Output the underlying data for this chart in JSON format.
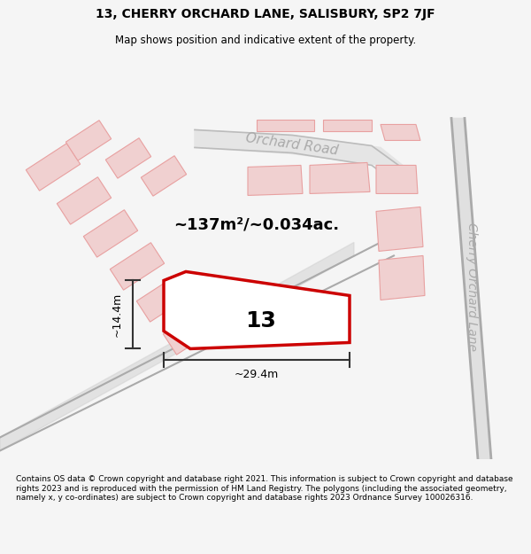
{
  "title_line1": "13, CHERRY ORCHARD LANE, SALISBURY, SP2 7JF",
  "title_line2": "Map shows position and indicative extent of the property.",
  "area_label": "~137m²/~0.034ac.",
  "property_number": "13",
  "dim_height": "~14.4m",
  "dim_width": "~29.4m",
  "road_label1": "Orchard Road",
  "road_label2": "Cherry Orchard Lane",
  "footer_text": "Contains OS data © Crown copyright and database right 2021. This information is subject to Crown copyright and database rights 2023 and is reproduced with the permission of HM Land Registry. The polygons (including the associated geometry, namely x, y co-ordinates) are subject to Crown copyright and database rights 2023 Ordnance Survey 100026316.",
  "bg_color": "#f5f5f5",
  "map_bg": "#ffffff",
  "road_fill": "#e0e0e0",
  "plot_outline_color": "#cc0000",
  "dim_line_color": "#333333",
  "road_label_color": "#aaaaaa",
  "street_line_color": "#bbbbbb",
  "building_outline_color": "#e8a0a0",
  "building_fill_color": "#f0d0d0"
}
